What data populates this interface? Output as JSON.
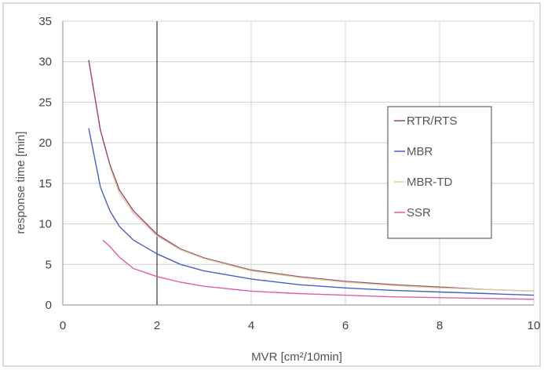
{
  "chart_data": {
    "type": "line",
    "title": "",
    "xlabel": "MVR [cm²/10min]",
    "ylabel": "response time [min]",
    "xlim": [
      0,
      10
    ],
    "ylim": [
      0,
      35
    ],
    "xticks": [
      0,
      2,
      4,
      6,
      8,
      10
    ],
    "yticks": [
      0,
      5,
      10,
      15,
      20,
      25,
      30,
      35
    ],
    "grid": true,
    "legend_position": "right",
    "reference_line_x": 2,
    "series": [
      {
        "name": "RTR/RTS",
        "color": "#a0406e",
        "x": [
          0.55,
          0.8,
          1.0,
          1.2,
          1.5,
          2.0,
          2.5,
          3.0,
          4.0,
          5.0,
          6.0,
          7.0,
          8.0,
          9.0,
          10.0
        ],
        "y": [
          30.2,
          21.5,
          17.3,
          14.2,
          11.6,
          8.7,
          6.9,
          5.8,
          4.3,
          3.5,
          2.9,
          2.5,
          2.2,
          1.9,
          1.7
        ]
      },
      {
        "name": "MBR",
        "color": "#4a5ec8",
        "x": [
          0.55,
          0.8,
          1.0,
          1.2,
          1.5,
          2.0,
          2.5,
          3.0,
          4.0,
          5.0,
          6.0,
          7.0,
          8.0,
          9.0,
          10.0
        ],
        "y": [
          21.8,
          14.5,
          11.6,
          9.7,
          8.0,
          6.3,
          5.0,
          4.2,
          3.2,
          2.5,
          2.1,
          1.8,
          1.6,
          1.4,
          1.2
        ]
      },
      {
        "name": "MBR-TD",
        "color": "#d6d6a2",
        "x": [
          1.0,
          1.2,
          1.5,
          2.0,
          2.5,
          3.0,
          4.0,
          5.0,
          6.0,
          7.0,
          8.0,
          9.0,
          10.0
        ],
        "y": [
          17.0,
          13.8,
          11.3,
          8.5,
          6.8,
          5.7,
          4.2,
          3.4,
          2.8,
          2.4,
          2.1,
          1.9,
          1.7
        ]
      },
      {
        "name": "SSR",
        "color": "#e05ca8",
        "x": [
          0.85,
          1.0,
          1.2,
          1.5,
          2.0,
          2.5,
          3.0,
          4.0,
          5.0,
          6.0,
          7.0,
          8.0,
          9.0,
          10.0
        ],
        "y": [
          8.0,
          7.2,
          5.9,
          4.5,
          3.5,
          2.8,
          2.3,
          1.7,
          1.4,
          1.2,
          1.0,
          0.9,
          0.8,
          0.7
        ]
      }
    ]
  }
}
